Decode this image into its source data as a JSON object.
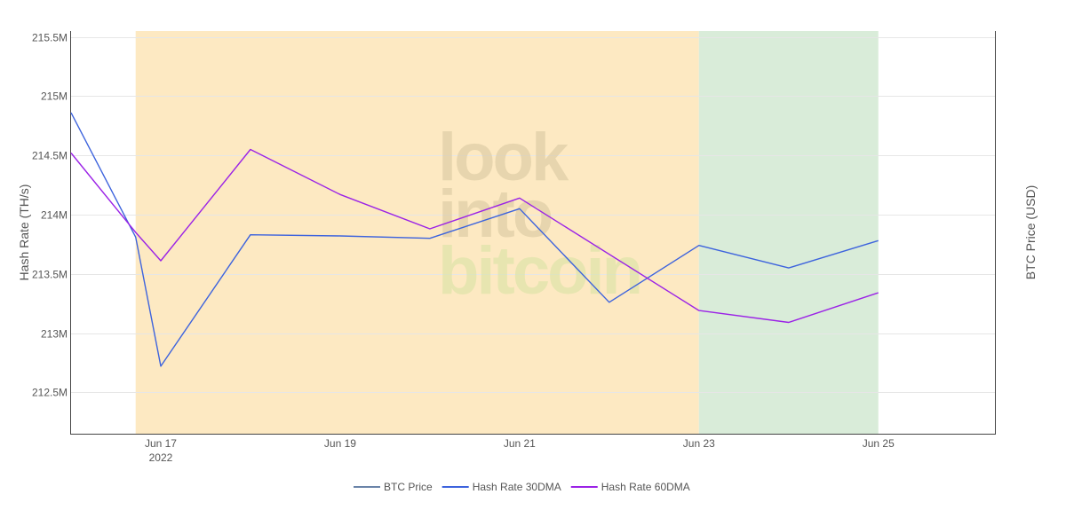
{
  "chart_data": {
    "type": "line",
    "y_axis_left": {
      "label": "Hash Rate (TH/s)",
      "range": [
        212.15,
        215.55
      ],
      "ticks": [
        212.5,
        213,
        213.5,
        214,
        214.5,
        215,
        215.5
      ],
      "tick_labels": [
        "212.5M",
        "213M",
        "213.5M",
        "214M",
        "214.5M",
        "215M",
        "215.5M"
      ]
    },
    "y_axis_right": {
      "label": "BTC Price (USD)"
    },
    "x_axis": {
      "range": [
        "2022-06-16",
        "2022-06-26.3"
      ],
      "ticks": [
        "2022-06-17",
        "2022-06-19",
        "2022-06-21",
        "2022-06-23",
        "2022-06-25"
      ],
      "tick_labels": [
        "Jun 17",
        "Jun 19",
        "Jun 21",
        "Jun 23",
        "Jun 25"
      ],
      "year_label": "2022"
    },
    "shaded_regions": [
      {
        "from": "2022-06-16.72",
        "to": "2022-06-23",
        "color": "#fde9c2"
      },
      {
        "from": "2022-06-23",
        "to": "2022-06-25",
        "color": "#d9ecd9"
      }
    ],
    "series": [
      {
        "name": "BTC Price",
        "color": "#6a84a8",
        "x": [],
        "values": []
      },
      {
        "name": "Hash Rate 30DMA",
        "color": "#3d63dd",
        "x": [
          "2022-06-16",
          "2022-06-16.72",
          "2022-06-17",
          "2022-06-18",
          "2022-06-19",
          "2022-06-20",
          "2022-06-21",
          "2022-06-22",
          "2022-06-23",
          "2022-06-24",
          "2022-06-25"
        ],
        "values": [
          214.86,
          213.81,
          212.72,
          213.83,
          213.82,
          213.8,
          214.05,
          213.26,
          213.74,
          213.55,
          213.78
        ]
      },
      {
        "name": "Hash Rate 60DMA",
        "color": "#9b22e6",
        "x": [
          "2022-06-16",
          "2022-06-16.72",
          "2022-06-17",
          "2022-06-18",
          "2022-06-19",
          "2022-06-20",
          "2022-06-21",
          "2022-06-23",
          "2022-06-24",
          "2022-06-25"
        ],
        "values": [
          214.52,
          213.85,
          213.61,
          214.55,
          214.17,
          213.88,
          214.14,
          213.19,
          213.09,
          213.34
        ]
      }
    ],
    "grid": true,
    "legend_position": "bottom-center"
  },
  "watermark": {
    "lines": [
      "look",
      "into",
      "bitcoin"
    ],
    "colors": [
      "#d9c8a0",
      "#d9c8a0",
      "#d8e2a4"
    ]
  }
}
